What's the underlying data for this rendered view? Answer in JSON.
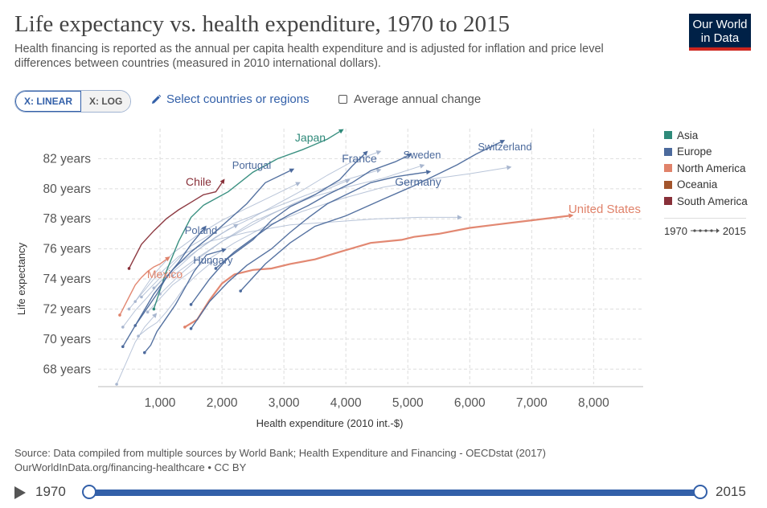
{
  "header": {
    "title": "Life expectancy vs. health expenditure, 1970 to 2015",
    "subtitle": "Health financing is reported as the annual per capita health expenditure and is adjusted for inflation and price level differences between countries (measured in 2010 international dollars).",
    "logo_line1": "Our World",
    "logo_line2": "in Data"
  },
  "controls": {
    "linear_label": "X: LINEAR",
    "log_label": "X: LOG",
    "select_label": "Select countries or regions",
    "avg_label": "Average annual change"
  },
  "legend": {
    "items": [
      {
        "label": "Asia",
        "color": "#2f8a7a"
      },
      {
        "label": "Europe",
        "color": "#4c6a9c"
      },
      {
        "label": "North America",
        "color": "#e0826a"
      },
      {
        "label": "Oceania",
        "color": "#a2552c"
      },
      {
        "label": "South America",
        "color": "#883039"
      }
    ],
    "range_start": "1970",
    "range_end": "2015"
  },
  "footer": {
    "source": "Source: Data compiled from multiple sources by World Bank; Health Expenditure and Financing - OECDstat (2017)",
    "url": "OurWorldInData.org/financing-healthcare • CC BY"
  },
  "timeline": {
    "start": "1970",
    "end": "2015"
  },
  "chart_data": {
    "type": "line",
    "xlabel": "Health expenditure (2010 int.-$)",
    "ylabel": "Life expectancy",
    "xlim": [
      0,
      8800
    ],
    "ylim": [
      67,
      84
    ],
    "xticks": [
      1000,
      2000,
      3000,
      4000,
      5000,
      6000,
      7000,
      8000
    ],
    "xtick_labels": [
      "1,000",
      "2,000",
      "3,000",
      "4,000",
      "5,000",
      "6,000",
      "7,000",
      "8,000"
    ],
    "yticks": [
      68,
      70,
      72,
      74,
      76,
      78,
      80,
      82
    ],
    "ytick_labels": [
      "68 years",
      "70 years",
      "72 years",
      "74 years",
      "76 years",
      "78 years",
      "80 years",
      "82 years"
    ],
    "grid": true,
    "series": [
      {
        "name": "United States",
        "color": "#e0826a",
        "labeled": true,
        "x": [
          1400,
          1600,
          1800,
          2000,
          2200,
          2500,
          2800,
          3100,
          3500,
          3900,
          4400,
          4900,
          5100,
          5500,
          6000,
          6400,
          7000,
          7600
        ],
        "y": [
          70.8,
          71.3,
          72.6,
          73.7,
          74.3,
          74.6,
          74.7,
          75.0,
          75.3,
          75.8,
          76.4,
          76.6,
          76.8,
          77.0,
          77.4,
          77.6,
          77.9,
          78.2
        ]
      },
      {
        "name": "Switzerland",
        "color": "#4c6a9c",
        "labeled": true,
        "x": [
          2300,
          2700,
          3100,
          3500,
          4000,
          4600,
          5100,
          5500,
          5800,
          6100,
          6300,
          6500
        ],
        "y": [
          73.2,
          75.0,
          76.4,
          77.5,
          78.2,
          79.3,
          80.2,
          81.0,
          81.6,
          82.3,
          82.7,
          83.1
        ]
      },
      {
        "name": "Sweden",
        "color": "#4c6a9c",
        "labeled": true,
        "x": [
          1900,
          2200,
          2500,
          2800,
          3100,
          3400,
          3700,
          4100,
          4400,
          4800,
          5000
        ],
        "y": [
          74.7,
          75.8,
          76.7,
          77.6,
          78.3,
          78.9,
          79.6,
          80.4,
          81.2,
          81.8,
          82.2
        ]
      },
      {
        "name": "Germany",
        "color": "#4c6a9c",
        "labeled": true,
        "x": [
          1500,
          1800,
          2100,
          2400,
          2800,
          3100,
          3400,
          3700,
          4100,
          4400,
          4800,
          5300
        ],
        "y": [
          70.7,
          72.5,
          73.8,
          74.9,
          76.0,
          77.1,
          78.1,
          79.0,
          79.8,
          80.4,
          80.8,
          81.1
        ]
      },
      {
        "name": "France",
        "color": "#4c6a9c",
        "labeled": true,
        "x": [
          1500,
          1800,
          2100,
          2500,
          2800,
          3100,
          3500,
          3900,
          4100,
          4300
        ],
        "y": [
          72.3,
          74.0,
          75.4,
          76.6,
          77.9,
          78.8,
          79.6,
          80.6,
          81.5,
          82.3
        ]
      },
      {
        "name": "Japan",
        "color": "#2f8a7a",
        "labeled": true,
        "x": [
          900,
          1100,
          1300,
          1500,
          1700,
          2100,
          2500,
          2900,
          3300,
          3700,
          3900
        ],
        "y": [
          72.0,
          74.5,
          76.5,
          78.1,
          78.9,
          79.8,
          81.1,
          82.0,
          82.6,
          83.3,
          83.8
        ]
      },
      {
        "name": "Portugal",
        "color": "#4c6a9c",
        "labeled": true,
        "x": [
          400,
          700,
          900,
          1200,
          1500,
          1800,
          2100,
          2400,
          2700,
          3100
        ],
        "y": [
          69.5,
          71.6,
          73.0,
          74.6,
          75.8,
          76.8,
          77.9,
          79.0,
          80.4,
          81.2
        ]
      },
      {
        "name": "Chile",
        "color": "#883039",
        "labeled": true,
        "x": [
          500,
          700,
          900,
          1100,
          1300,
          1500,
          1700,
          1900,
          2000
        ],
        "y": [
          74.7,
          76.3,
          77.2,
          78.0,
          78.6,
          79.1,
          79.6,
          79.8,
          80.4
        ]
      },
      {
        "name": "Poland",
        "color": "#4c6a9c",
        "labeled": true,
        "x": [
          600,
          700,
          800,
          950,
          1100,
          1300,
          1500,
          1700
        ],
        "y": [
          70.9,
          71.5,
          72.1,
          73.0,
          74.1,
          75.1,
          76.3,
          77.3
        ]
      },
      {
        "name": "Hungary",
        "color": "#4c6a9c",
        "labeled": true,
        "x": [
          750,
          850,
          950,
          1100,
          1250,
          1400,
          1550,
          1750,
          2000
        ],
        "y": [
          69.1,
          69.6,
          70.5,
          71.4,
          72.3,
          73.4,
          74.5,
          75.6,
          75.9
        ]
      },
      {
        "name": "Mexico",
        "color": "#e0826a",
        "labeled": true,
        "x": [
          350,
          500,
          600,
          700,
          800,
          900,
          1000,
          1100
        ],
        "y": [
          71.6,
          72.8,
          73.6,
          74.1,
          74.5,
          74.8,
          75.0,
          75.3
        ]
      },
      {
        "name": "",
        "color": "#a8b6cf",
        "labeled": false,
        "x": [
          500,
          900,
          1300,
          1800,
          2400,
          3100,
          3800,
          4500,
          5200,
          5800
        ],
        "y": [
          72.0,
          74.0,
          75.5,
          76.5,
          77.1,
          77.6,
          77.8,
          78.0,
          78.1,
          78.1
        ]
      },
      {
        "name": "",
        "color": "#a8b6cf",
        "labeled": false,
        "x": [
          700,
          1100,
          1500,
          2000,
          2500,
          3000,
          3500,
          4000,
          4500
        ],
        "y": [
          72.8,
          74.5,
          76.2,
          77.4,
          78.2,
          79.0,
          79.8,
          80.6,
          81.2
        ]
      },
      {
        "name": "",
        "color": "#a8b6cf",
        "labeled": false,
        "x": [
          600,
          900,
          1200,
          1600,
          2000,
          2400,
          2800,
          3200
        ],
        "y": [
          72.5,
          74.3,
          75.7,
          76.9,
          77.9,
          78.7,
          79.5,
          80.3
        ]
      },
      {
        "name": "",
        "color": "#a8b6cf",
        "labeled": false,
        "x": [
          400,
          600,
          800,
          1000,
          1300,
          1600,
          1900,
          2200
        ],
        "y": [
          70.8,
          71.9,
          72.8,
          73.8,
          74.8,
          75.9,
          76.8,
          77.5
        ]
      },
      {
        "name": "",
        "color": "#a8b6cf",
        "labeled": false,
        "x": [
          300,
          450,
          600,
          750,
          900
        ],
        "y": [
          67.0,
          68.4,
          69.8,
          70.8,
          71.5
        ]
      },
      {
        "name": "",
        "color": "#a8b6cf",
        "labeled": false,
        "x": [
          800,
          1200,
          1700,
          2200,
          2700,
          3300,
          3900,
          4600,
          5300,
          6000,
          6600
        ],
        "y": [
          71.8,
          73.6,
          75.1,
          76.4,
          77.5,
          78.5,
          79.3,
          80.1,
          80.6,
          81.0,
          81.4
        ]
      },
      {
        "name": "",
        "color": "#a8b6cf",
        "labeled": false,
        "x": [
          900,
          1300,
          1700,
          2100,
          2500,
          2900,
          3300,
          3700,
          4100,
          4500
        ],
        "y": [
          73.4,
          75.0,
          76.2,
          77.3,
          78.1,
          79.0,
          79.9,
          80.9,
          81.8,
          82.4
        ]
      },
      {
        "name": "",
        "color": "#a8b6cf",
        "labeled": false,
        "x": [
          1000,
          1300,
          1600,
          2000,
          2400,
          2800,
          3200,
          3600,
          4000
        ],
        "y": [
          73.0,
          74.2,
          75.3,
          76.5,
          77.4,
          78.3,
          79.1,
          79.8,
          80.5
        ]
      },
      {
        "name": "",
        "color": "#a8b6cf",
        "labeled": false,
        "x": [
          650,
          800,
          950,
          1100,
          1250,
          1400,
          1600,
          1800
        ],
        "y": [
          70.2,
          70.7,
          71.1,
          71.8,
          72.6,
          73.5,
          74.3,
          75.0
        ]
      },
      {
        "name": "",
        "color": "#a8b6cf",
        "labeled": false,
        "x": [
          1200,
          1600,
          2000,
          2500,
          3000,
          3500,
          4000,
          4600,
          5200
        ],
        "y": [
          74.2,
          75.4,
          76.5,
          77.8,
          78.7,
          79.5,
          80.1,
          80.7,
          81.5
        ]
      }
    ]
  }
}
